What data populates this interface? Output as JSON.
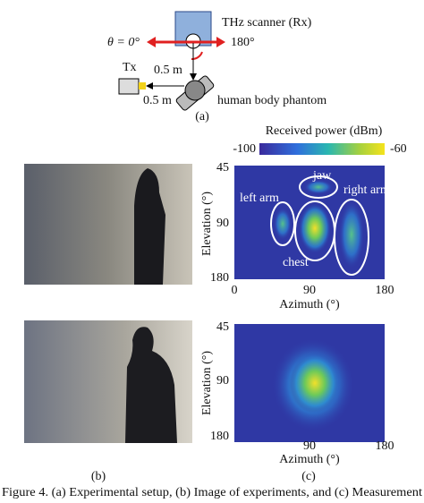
{
  "setup": {
    "scanner_label": "THz scanner (Rx)",
    "theta_label": "θ = 0°",
    "theta_end_label": "180°",
    "tx_label": "Tx",
    "distance_rx": "0.5 m",
    "distance_tx": "0.5 m",
    "phantom_label": "human body phantom",
    "panel_label": "(a)"
  },
  "colorbar": {
    "title": "Received power (dBm)",
    "min_label": "-100",
    "max_label": "-60"
  },
  "heatmap_top": {
    "yticks": [
      "45",
      "90",
      "180"
    ],
    "xticks": [
      "0",
      "90",
      "180"
    ],
    "ylabel": "Elevation (°)",
    "xlabel": "Azimuth (°)",
    "annotations": [
      "jaw",
      "left arm",
      "right arm",
      "chest"
    ]
  },
  "heatmap_bottom": {
    "yticks": [
      "45",
      "90",
      "180"
    ],
    "xticks": [
      "90",
      "180"
    ],
    "ylabel": "Elevation (°)",
    "xlabel": "Azimuth (°)"
  },
  "panel_b": "(b)",
  "panel_c": "(c)",
  "caption": "Figure 4. (a) Experimental setup, (b) Image of experiments, and (c) Measurement"
}
